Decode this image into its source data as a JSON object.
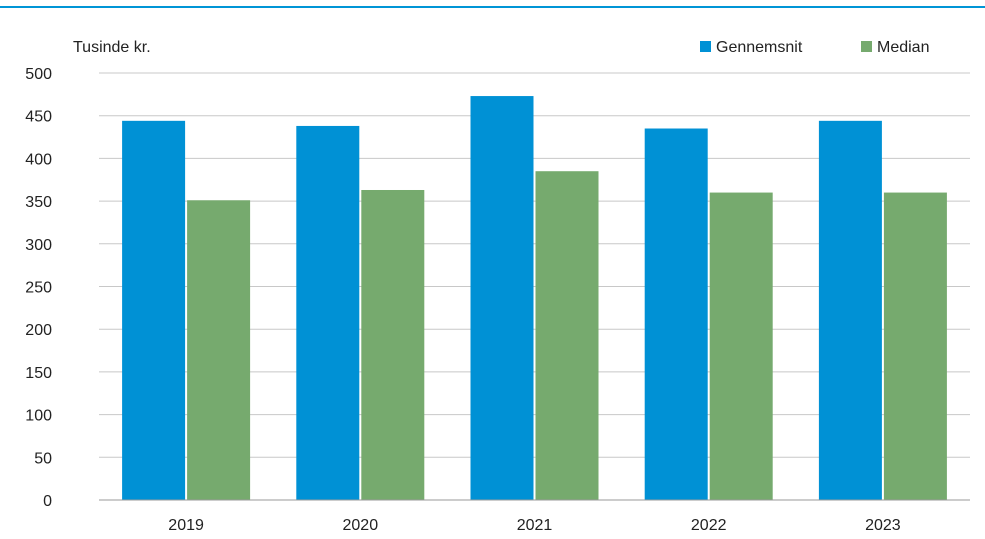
{
  "chart_data": {
    "type": "bar",
    "unit_label": "Tusinde kr.",
    "categories": [
      "2019",
      "2020",
      "2021",
      "2022",
      "2023"
    ],
    "series": [
      {
        "name": "Gennemsnit",
        "color": "#0091d5",
        "values": [
          444,
          438,
          473,
          435,
          444
        ]
      },
      {
        "name": "Median",
        "color": "#76aa6e",
        "values": [
          351,
          363,
          385,
          360,
          360
        ]
      }
    ],
    "ylim": [
      0,
      500
    ],
    "yticks": [
      0,
      50,
      100,
      150,
      200,
      250,
      300,
      350,
      400,
      450,
      500
    ],
    "grid": true,
    "legend": "top-right"
  }
}
